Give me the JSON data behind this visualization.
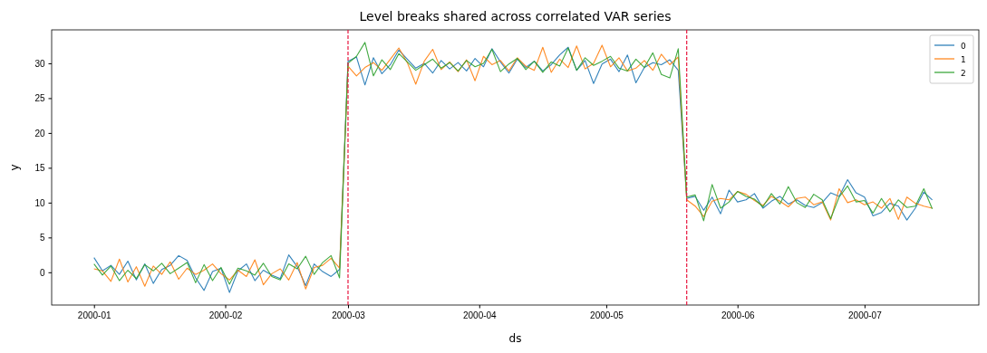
{
  "chart_data": {
    "type": "line",
    "title": "Level breaks shared across correlated VAR series",
    "xlabel": "ds",
    "ylabel": "y",
    "x": [
      "2000-01-01",
      "2000-01-03",
      "2000-01-05",
      "2000-01-07",
      "2000-01-09",
      "2000-01-11",
      "2000-01-13",
      "2000-01-15",
      "2000-01-17",
      "2000-01-19",
      "2000-01-21",
      "2000-01-23",
      "2000-01-25",
      "2000-01-27",
      "2000-01-29",
      "2000-01-31",
      "2000-02-02",
      "2000-02-04",
      "2000-02-06",
      "2000-02-08",
      "2000-02-10",
      "2000-02-12",
      "2000-02-14",
      "2000-02-16",
      "2000-02-18",
      "2000-02-20",
      "2000-02-22",
      "2000-02-24",
      "2000-02-26",
      "2000-02-28",
      "2000-03-01",
      "2000-03-03",
      "2000-03-05",
      "2000-03-07",
      "2000-03-09",
      "2000-03-11",
      "2000-03-13",
      "2000-03-15",
      "2000-03-17",
      "2000-03-19",
      "2000-03-21",
      "2000-03-23",
      "2000-03-25",
      "2000-03-27",
      "2000-03-29",
      "2000-03-31",
      "2000-04-02",
      "2000-04-04",
      "2000-04-06",
      "2000-04-08",
      "2000-04-10",
      "2000-04-12",
      "2000-04-14",
      "2000-04-16",
      "2000-04-18",
      "2000-04-20",
      "2000-04-22",
      "2000-04-24",
      "2000-04-26",
      "2000-04-28",
      "2000-04-30",
      "2000-05-02",
      "2000-05-04",
      "2000-05-06",
      "2000-05-08",
      "2000-05-10",
      "2000-05-12",
      "2000-05-14",
      "2000-05-16",
      "2000-05-18",
      "2000-05-20",
      "2000-05-22",
      "2000-05-24",
      "2000-05-26",
      "2000-05-28",
      "2000-05-30",
      "2000-06-01",
      "2000-06-03",
      "2000-06-05",
      "2000-06-07",
      "2000-06-09",
      "2000-06-11",
      "2000-06-13",
      "2000-06-15",
      "2000-06-17",
      "2000-06-19",
      "2000-06-21",
      "2000-06-23",
      "2000-06-25",
      "2000-06-27",
      "2000-06-29",
      "2000-07-01",
      "2000-07-03",
      "2000-07-05",
      "2000-07-07",
      "2000-07-09",
      "2000-07-11",
      "2000-07-13",
      "2000-07-15",
      "2000-07-17"
    ],
    "series": [
      {
        "name": "0",
        "color": "#1f77b4",
        "values": [
          2.1,
          0.2,
          1.0,
          -0.3,
          1.6,
          -1.1,
          1.2,
          -1.6,
          0.4,
          1.0,
          2.4,
          1.7,
          -0.8,
          -2.6,
          0.1,
          0.6,
          -2.9,
          0.2,
          1.2,
          -1.2,
          0.3,
          -0.4,
          -0.9,
          2.5,
          0.8,
          -1.9,
          1.2,
          0.1,
          -0.6,
          0.4,
          30.3,
          30.9,
          26.9,
          30.8,
          28.5,
          29.8,
          31.9,
          30.6,
          29.3,
          30.0,
          28.6,
          30.4,
          29.2,
          30.1,
          28.9,
          30.7,
          29.5,
          32.1,
          30.2,
          28.6,
          30.6,
          29.4,
          30.3,
          28.9,
          29.8,
          31.2,
          32.3,
          29.0,
          30.4,
          27.1,
          29.9,
          30.6,
          28.8,
          31.2,
          27.2,
          29.4,
          30.1,
          29.8,
          30.5,
          29.0,
          10.6,
          10.9,
          8.9,
          10.8,
          8.4,
          11.8,
          10.1,
          10.4,
          11.3,
          9.2,
          10.2,
          10.9,
          9.8,
          10.4,
          9.6,
          9.3,
          10.0,
          11.4,
          10.9,
          13.3,
          11.4,
          10.8,
          8.1,
          8.6,
          9.9,
          9.5,
          7.5,
          9.2,
          11.5,
          10.4
        ]
      },
      {
        "name": "1",
        "color": "#ff7f0e",
        "values": [
          0.5,
          0.2,
          -1.3,
          1.9,
          -1.4,
          0.8,
          -2.0,
          0.9,
          -0.3,
          1.5,
          -1.0,
          0.6,
          -0.3,
          0.3,
          1.2,
          -0.2,
          -1.1,
          0.3,
          -0.6,
          1.8,
          -1.8,
          -0.2,
          0.5,
          -1.1,
          1.4,
          -2.4,
          0.7,
          1.0,
          2.0,
          0.6,
          29.6,
          28.2,
          29.4,
          30.1,
          29.0,
          30.6,
          32.2,
          30.1,
          27.0,
          30.3,
          32.0,
          29.1,
          30.2,
          28.8,
          30.5,
          27.5,
          31.0,
          29.8,
          30.4,
          28.9,
          30.8,
          29.6,
          29.0,
          32.3,
          28.7,
          30.6,
          29.4,
          32.5,
          29.2,
          30.0,
          32.6,
          29.5,
          30.8,
          28.9,
          29.3,
          30.4,
          29.0,
          31.3,
          29.8,
          30.9,
          10.4,
          9.5,
          8.0,
          10.2,
          10.6,
          10.4,
          11.6,
          11.2,
          10.3,
          9.6,
          10.9,
          10.2,
          9.4,
          10.6,
          10.8,
          9.7,
          10.1,
          7.5,
          12.0,
          10.0,
          10.4,
          9.7,
          10.1,
          9.2,
          10.6,
          7.6,
          10.8,
          9.9,
          9.5,
          9.2
        ]
      },
      {
        "name": "2",
        "color": "#2ca02c",
        "values": [
          1.2,
          -0.4,
          0.9,
          -1.2,
          0.3,
          -0.9,
          1.1,
          0.2,
          1.3,
          -0.2,
          0.6,
          1.4,
          -1.5,
          1.1,
          -1.2,
          0.7,
          -1.7,
          0.6,
          0.2,
          -0.4,
          1.3,
          -0.6,
          -1.1,
          1.2,
          0.5,
          2.3,
          -0.3,
          1.4,
          2.4,
          -0.8,
          30.0,
          31.0,
          33.0,
          28.2,
          30.5,
          29.1,
          31.4,
          30.2,
          29.0,
          29.8,
          30.6,
          29.3,
          30.1,
          28.9,
          30.4,
          29.5,
          30.0,
          32.0,
          28.8,
          29.9,
          30.7,
          29.1,
          30.3,
          28.7,
          30.2,
          29.6,
          32.2,
          29.0,
          30.8,
          29.7,
          30.3,
          31.0,
          29.3,
          28.9,
          30.6,
          29.4,
          31.5,
          28.4,
          27.9,
          32.1,
          10.8,
          11.1,
          7.4,
          12.6,
          9.2,
          10.1,
          11.6,
          10.9,
          10.5,
          9.4,
          11.3,
          9.8,
          12.3,
          10.0,
          9.3,
          11.2,
          10.4,
          7.7,
          10.8,
          12.4,
          10.1,
          10.3,
          8.5,
          10.6,
          8.7,
          10.4,
          9.3,
          9.5,
          12.0,
          9.1
        ]
      }
    ],
    "xlim": [
      "1999-12-22",
      "2000-07-28"
    ],
    "xticks": [
      "2000-01",
      "2000-02",
      "2000-03",
      "2000-04",
      "2000-05",
      "2000-06",
      "2000-07"
    ],
    "ylim": [
      -4.7,
      34.8
    ],
    "yticks": [
      0,
      5,
      10,
      15,
      20,
      25,
      30
    ],
    "ref_lines": [
      {
        "axis": "x",
        "value": "2000-03-01",
        "color": "#e8173f",
        "line_style": "dashed"
      },
      {
        "axis": "x",
        "value": "2000-05-20",
        "color": "#e8173f",
        "line_style": "dashed"
      }
    ],
    "grid": false,
    "legend": "top right",
    "line_style": "solid",
    "marker": "none"
  }
}
